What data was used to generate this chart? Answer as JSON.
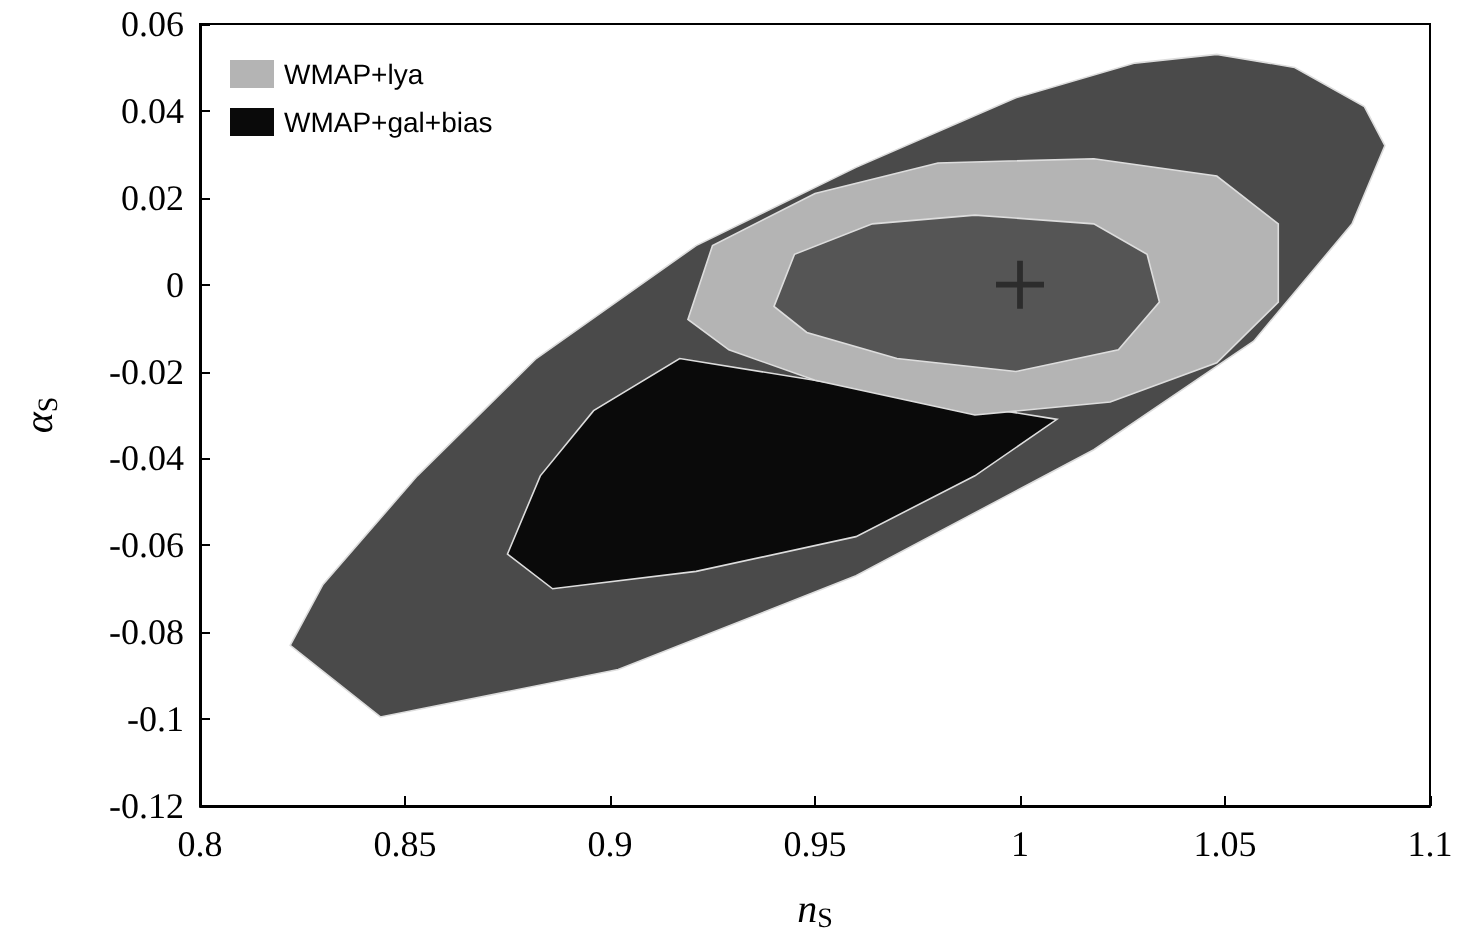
{
  "chart_data": {
    "type": "area",
    "xlabel": "n$_{S}$",
    "ylabel": "α$_{S}$",
    "xlim": [
      0.8,
      1.1
    ],
    "xticks": [
      0.8,
      0.85,
      0.9,
      0.95,
      1,
      1.05,
      1.1
    ],
    "ylim": [
      -0.12,
      0.06
    ],
    "yticks": [
      -0.12,
      -0.1,
      -0.08,
      -0.06,
      -0.04,
      -0.02,
      0,
      0.02,
      0.04,
      0.06
    ],
    "legend": "top left",
    "grid": false,
    "series": [
      {
        "color": "#4a4a4a",
        "x": [
          0.822,
          0.844,
          0.902,
          0.96,
          1.018,
          1.057,
          1.081,
          1.089,
          1.084,
          1.067,
          1.048,
          1.028,
          0.999,
          0.96,
          0.921,
          0.882,
          0.853,
          0.83
        ],
        "values": [
          -0.083,
          -0.0995,
          -0.0886,
          -0.067,
          -0.038,
          -0.013,
          0.014,
          0.032,
          0.041,
          0.05,
          0.053,
          0.051,
          0.043,
          0.027,
          0.009,
          -0.017,
          -0.044,
          -0.069
        ]
      },
      {
        "name": "WMAP+gal+bias",
        "color": "#0a0a0a",
        "x": [
          0.875,
          0.886,
          0.921,
          0.96,
          0.989,
          1.009,
          0.917,
          0.896,
          0.883
        ],
        "values": [
          -0.062,
          -0.07,
          -0.066,
          -0.058,
          -0.044,
          -0.031,
          -0.017,
          -0.029,
          -0.044
        ]
      },
      {
        "name": "WMAP+lya",
        "color": "#b4b4b4",
        "x": [
          0.919,
          0.925,
          0.95,
          0.98,
          1.018,
          1.048,
          1.063,
          1.063,
          1.048,
          1.022,
          0.989,
          0.95,
          0.929
        ],
        "values": [
          -0.008,
          0.009,
          0.021,
          0.028,
          0.029,
          0.025,
          0.014,
          -0.004,
          -0.018,
          -0.027,
          -0.03,
          -0.022,
          -0.015
        ]
      },
      {
        "color": "#555555",
        "x": [
          0.94,
          0.945,
          0.964,
          0.989,
          1.018,
          1.031,
          1.034,
          1.024,
          0.999,
          0.97,
          0.948
        ],
        "values": [
          -0.005,
          0.007,
          0.014,
          0.016,
          0.014,
          0.007,
          -0.004,
          -0.015,
          -0.02,
          -0.017,
          -0.011
        ]
      },
      {
        "type": "scatter",
        "marker": "cross",
        "color": "#222222",
        "x": [
          1
        ],
        "values": [
          0
        ]
      }
    ]
  }
}
